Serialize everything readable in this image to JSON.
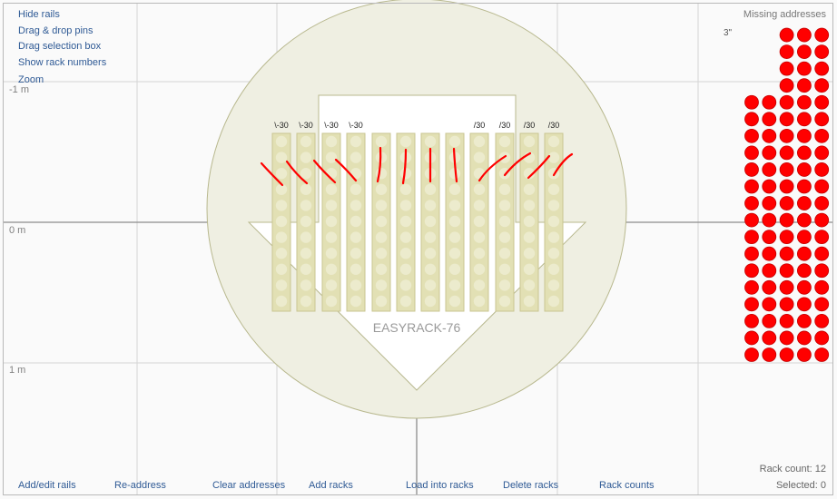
{
  "menu": {
    "top": [
      "Hide rails",
      "Drag & drop pins",
      "Drag selection box",
      "Show rack numbers",
      "Zoom"
    ],
    "bottom": [
      "Add/edit rails",
      "Re-address",
      "Clear addresses",
      "Add racks",
      "Load into racks",
      "Delete racks",
      "Rack counts"
    ]
  },
  "axis": {
    "labels": [
      "-1 m",
      "0 m",
      "1 m"
    ]
  },
  "canvas": {
    "rack_model": "EASYRACK-76",
    "rack_angle_labels": [
      "\\-30",
      "\\-30",
      "\\-30",
      "\\-30",
      "",
      "",
      "",
      "",
      "/30",
      "/30",
      "/30",
      "/30"
    ]
  },
  "missing_panel": {
    "title": "Missing addresses",
    "size_label": "3\"",
    "columns": [
      16,
      16,
      20,
      20,
      20
    ],
    "dot_color": "#ff0000"
  },
  "status": {
    "rack_count": "Rack count: 12",
    "selected": "Selected: 0"
  },
  "colors": {
    "link": "#2f5a95",
    "circle_fill": "#efefe2",
    "rack_fill": "#e2e0b4",
    "mark": "#ff0000"
  }
}
